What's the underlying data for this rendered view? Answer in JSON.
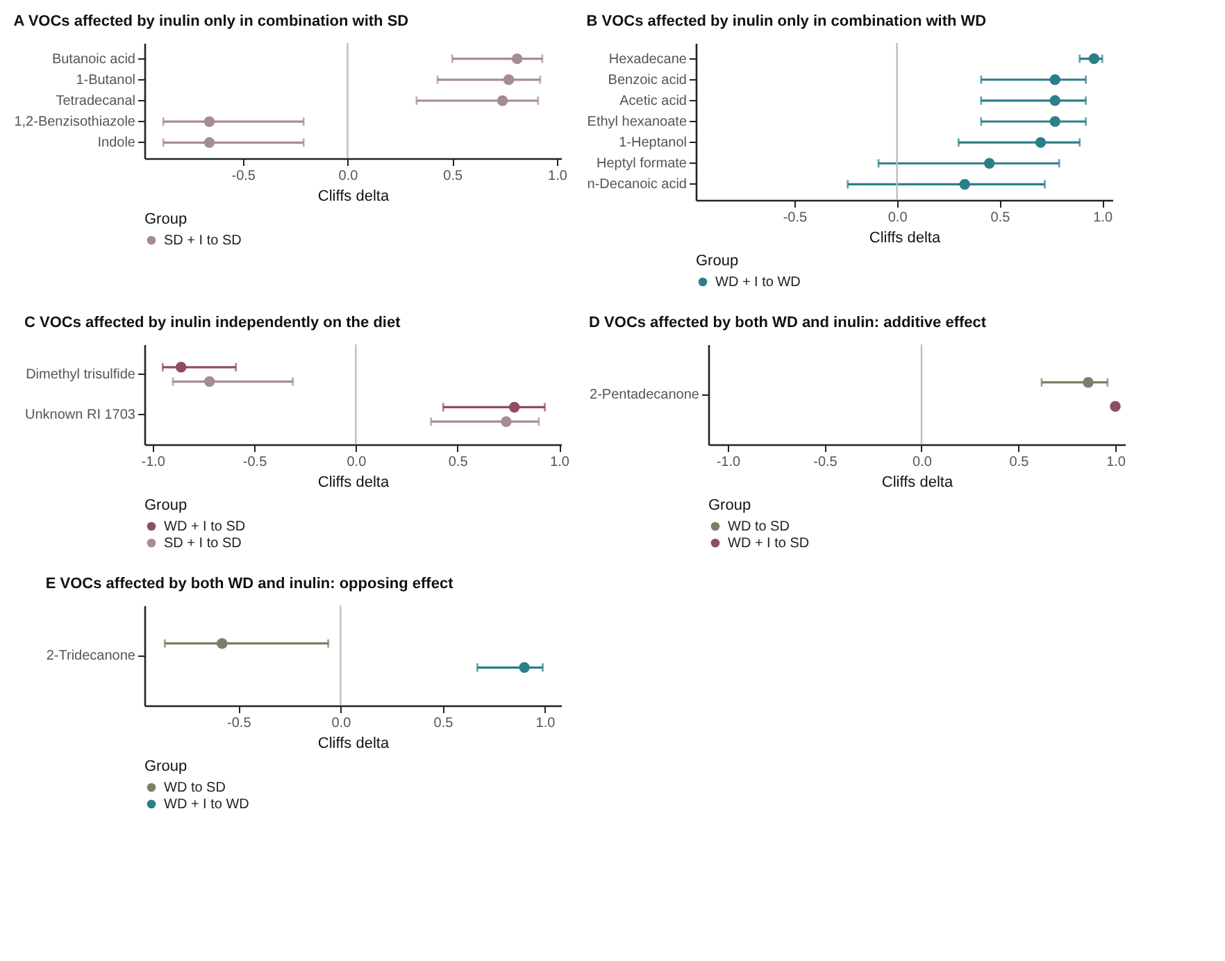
{
  "chart_data": [
    {
      "type": "scatter",
      "orientation": "horizontal",
      "title": "A  VOCs affected by inulin only in combination with SD",
      "xlabel": "Cliffs delta",
      "legend_title": "Group",
      "legend": "bottom left",
      "marker": "circle",
      "grid": false,
      "categories": [
        "Butanoic acid",
        "1-Butanol",
        "Tetradecanal",
        "1,2-Benzisothiazole",
        "Indole"
      ],
      "xlim": [
        -0.97,
        1.02
      ],
      "xticks": [
        {
          "value": -0.5,
          "label": "-0.5"
        },
        {
          "value": 0,
          "label": "0.0"
        },
        {
          "value": 0.5,
          "label": "0.5"
        },
        {
          "value": 1,
          "label": "1.0"
        }
      ],
      "ref_lines": [
        {
          "axis": "x",
          "value": 0,
          "color": "#bdbdbd"
        }
      ],
      "series": [
        {
          "name": "SD + I to SD",
          "color": "#a58c92",
          "values": [
            0.81,
            0.77,
            0.74,
            -0.66,
            -0.66
          ],
          "errors": [
            [
              0.5,
              0.93
            ],
            [
              0.43,
              0.92
            ],
            [
              0.33,
              0.91
            ],
            [
              -0.88,
              -0.21
            ],
            [
              -0.88,
              -0.21
            ]
          ]
        }
      ]
    },
    {
      "type": "scatter",
      "orientation": "horizontal",
      "title": "B  VOCs affected by inulin only in combination with WD",
      "xlabel": "Cliffs delta",
      "legend_title": "Group",
      "legend": "bottom left",
      "marker": "circle",
      "grid": false,
      "categories": [
        "Hexadecane",
        "Benzoic acid",
        "Acetic acid",
        "Ethyl hexanoate",
        "1-Heptanol",
        "Heptyl formate",
        "n-Decanoic acid"
      ],
      "xlim": [
        -0.98,
        1.05
      ],
      "xticks": [
        {
          "value": -0.5,
          "label": "-0.5"
        },
        {
          "value": 0,
          "label": "0.0"
        },
        {
          "value": 0.5,
          "label": "0.5"
        },
        {
          "value": 1,
          "label": "1.0"
        }
      ],
      "ref_lines": [
        {
          "axis": "x",
          "value": 0,
          "color": "#bdbdbd"
        }
      ],
      "series": [
        {
          "name": "WD + I to WD",
          "color": "#2a7f8a",
          "values": [
            0.96,
            0.77,
            0.77,
            0.77,
            0.7,
            0.45,
            0.33
          ],
          "errors": [
            [
              0.89,
              1.0
            ],
            [
              0.41,
              0.92
            ],
            [
              0.41,
              0.92
            ],
            [
              0.41,
              0.92
            ],
            [
              0.3,
              0.89
            ],
            [
              -0.09,
              0.79
            ],
            [
              -0.24,
              0.72
            ]
          ]
        }
      ]
    },
    {
      "type": "scatter",
      "orientation": "horizontal",
      "title": "C  VOCs affected by inulin independently on the diet",
      "xlabel": "Cliffs delta",
      "legend_title": "Group",
      "legend": "bottom left",
      "marker": "circle",
      "grid": false,
      "categories": [
        "Dimethyl trisulfide",
        "Unknown RI 1703"
      ],
      "xlim": [
        -1.04,
        1.01
      ],
      "xticks": [
        {
          "value": -1,
          "label": "-1.0"
        },
        {
          "value": -0.5,
          "label": "-0.5"
        },
        {
          "value": 0,
          "label": "0.0"
        },
        {
          "value": 0.5,
          "label": "0.5"
        },
        {
          "value": 1,
          "label": "1.0"
        }
      ],
      "ref_lines": [
        {
          "axis": "x",
          "value": 0,
          "color": "#bdbdbd"
        }
      ],
      "series": [
        {
          "name": "WD + I to SD",
          "color": "#8e4d62",
          "values": [
            -0.86,
            0.78
          ],
          "errors": [
            [
              -0.95,
              -0.59
            ],
            [
              0.43,
              0.93
            ]
          ]
        },
        {
          "name": "SD + I to SD",
          "color": "#a58c92",
          "values": [
            -0.72,
            0.74
          ],
          "errors": [
            [
              -0.9,
              -0.31
            ],
            [
              0.37,
              0.9
            ]
          ]
        }
      ]
    },
    {
      "type": "scatter",
      "orientation": "horizontal",
      "title": "D  VOCs affected by both WD and inulin: additive effect",
      "xlabel": "Cliffs delta",
      "legend_title": "Group",
      "legend": "bottom left",
      "marker": "circle",
      "grid": false,
      "categories": [
        "2-Pentadecanone"
      ],
      "xlim": [
        -1.1,
        1.05
      ],
      "xticks": [
        {
          "value": -1,
          "label": "-1.0"
        },
        {
          "value": -0.5,
          "label": "-0.5"
        },
        {
          "value": 0,
          "label": "0.0"
        },
        {
          "value": 0.5,
          "label": "0.5"
        },
        {
          "value": 1,
          "label": "1.0"
        }
      ],
      "ref_lines": [
        {
          "axis": "x",
          "value": 0,
          "color": "#bdbdbd"
        }
      ],
      "series": [
        {
          "name": "WD to SD",
          "color": "#7b7f68",
          "values": [
            0.86
          ],
          "errors": [
            [
              0.62,
              0.96
            ]
          ]
        },
        {
          "name": "WD + I to SD",
          "color": "#8e4d62",
          "values": [
            1.0
          ],
          "errors": [
            null
          ]
        }
      ]
    },
    {
      "type": "scatter",
      "orientation": "horizontal",
      "title": "E  VOCs affected by both WD and inulin: opposing effect",
      "xlabel": "Cliffs delta",
      "legend_title": "Group",
      "legend": "bottom left",
      "marker": "circle",
      "grid": false,
      "categories": [
        "2-Tridecanone"
      ],
      "xlim": [
        -0.96,
        1.08
      ],
      "xticks": [
        {
          "value": -0.5,
          "label": "-0.5"
        },
        {
          "value": 0,
          "label": "0.0"
        },
        {
          "value": 0.5,
          "label": "0.5"
        },
        {
          "value": 1,
          "label": "1.0"
        }
      ],
      "ref_lines": [
        {
          "axis": "x",
          "value": 0,
          "color": "#bdbdbd"
        }
      ],
      "series": [
        {
          "name": "WD to SD",
          "color": "#7b7f68",
          "values": [
            -0.58
          ],
          "errors": [
            [
              -0.86,
              -0.06
            ]
          ]
        },
        {
          "name": "WD + I to WD",
          "color": "#2a7f8a",
          "values": [
            0.9
          ],
          "errors": [
            [
              0.67,
              0.99
            ]
          ]
        }
      ]
    }
  ]
}
